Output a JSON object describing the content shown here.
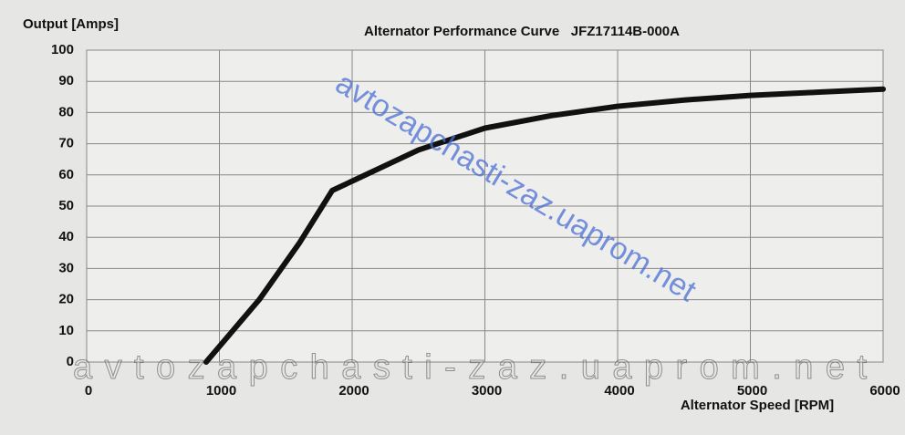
{
  "chart_data": {
    "type": "line",
    "title": "Alternator Performance Curve   JFZ17114B-000A",
    "ylabel": "Output [Amps]",
    "xlabel": "Alternator Speed [RPM]",
    "watermarks": [
      "avtozapchasti-zaz.uaprom.net",
      "avtozapchasti-zaz.uaprom.net"
    ],
    "x": [
      900,
      1300,
      1600,
      1850,
      2000,
      2500,
      3000,
      3500,
      4000,
      4500,
      5000,
      5500,
      6000
    ],
    "series": [
      {
        "color": "#111111",
        "values": [
          0,
          20,
          38,
          55,
          58,
          68,
          75,
          79,
          82,
          84,
          85.5,
          86.5,
          87.5
        ]
      }
    ],
    "xlim": [
      0,
      6000
    ],
    "ylim": [
      0,
      100
    ],
    "xticks": [
      0,
      1000,
      2000,
      3000,
      4000,
      5000,
      6000
    ],
    "yticks": [
      0,
      10,
      20,
      30,
      40,
      50,
      60,
      70,
      80,
      90,
      100
    ],
    "grid": true
  }
}
